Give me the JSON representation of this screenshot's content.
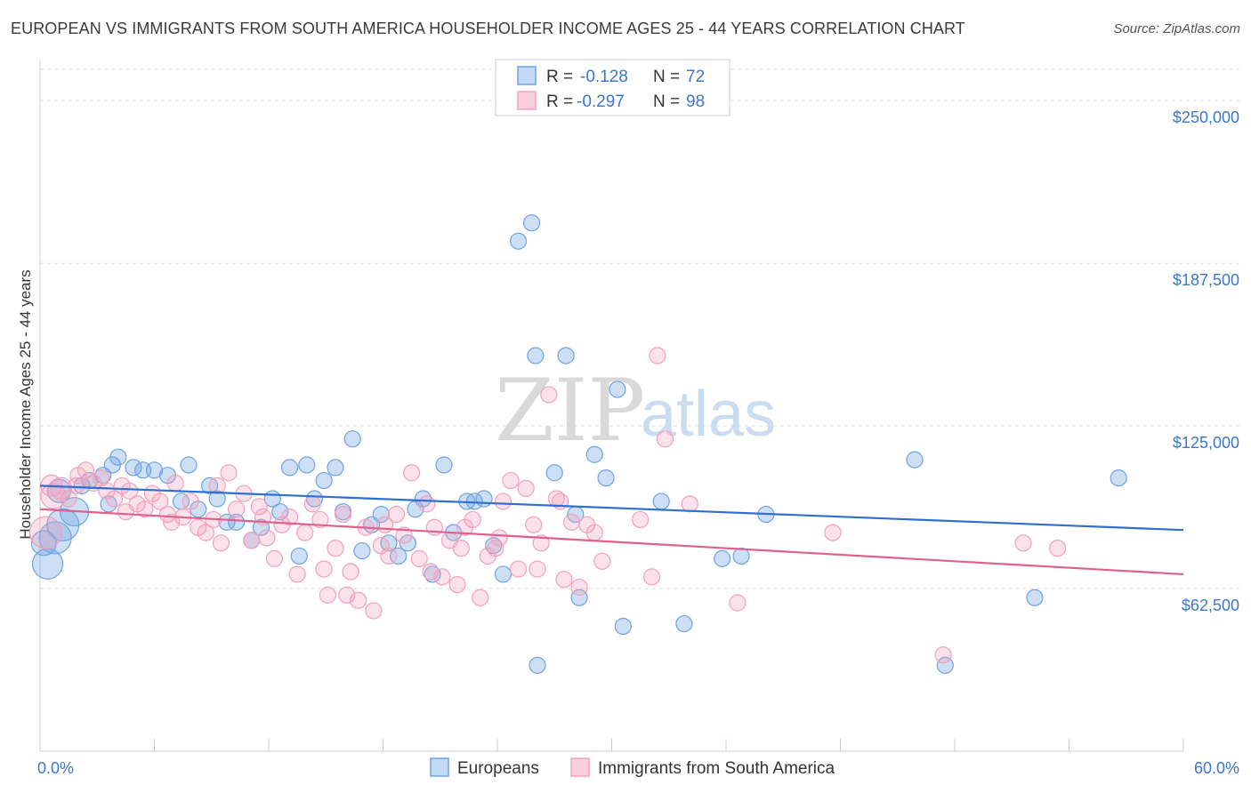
{
  "title": "EUROPEAN VS IMMIGRANTS FROM SOUTH AMERICA HOUSEHOLDER INCOME AGES 25 - 44 YEARS CORRELATION CHART",
  "source": "Source: ZipAtlas.com",
  "watermark": {
    "zip": "ZIP",
    "atlas": "atlas"
  },
  "legend": {
    "r_label": "R =",
    "n_label": "N =",
    "rows": [
      {
        "r": "-0.128",
        "n": "72"
      },
      {
        "r": "-0.297",
        "n": "98"
      }
    ]
  },
  "chart_data": {
    "type": "scatter",
    "title": "EUROPEAN VS IMMIGRANTS FROM SOUTH AMERICA HOUSEHOLDER INCOME AGES 25 - 44 YEARS CORRELATION CHART",
    "xlabel": "",
    "ylabel": "Householder Income Ages 25 - 44 years",
    "xlim": [
      0,
      60
    ],
    "ylim": [
      0,
      262000
    ],
    "x_tick_labels": [
      "0.0%",
      "60.0%"
    ],
    "y_ticks": [
      62500,
      125000,
      187500,
      250000
    ],
    "y_tick_labels": [
      "$62,500",
      "$125,000",
      "$187,500",
      "$250,000"
    ],
    "grid": true,
    "legend_placement": "top-center",
    "colors": {
      "europeans": "#6fa3e0",
      "immigrants": "#f2a0bb",
      "europeans_line": "#2f6fcf",
      "immigrants_line": "#e0608c"
    },
    "series": [
      {
        "name": "Europeans",
        "r": -0.128,
        "n": 72,
        "trend": {
          "x": [
            0,
            60
          ],
          "y": [
            102000,
            85000
          ]
        },
        "points": [
          [
            0.4,
            72000
          ],
          [
            0.8,
            82000
          ],
          [
            1.2,
            87000
          ],
          [
            1.8,
            92000
          ],
          [
            2.2,
            102000
          ],
          [
            2.6,
            104000
          ],
          [
            3.3,
            106000
          ],
          [
            3.8,
            110000
          ],
          [
            4.1,
            113000
          ],
          [
            4.9,
            109000
          ],
          [
            5.4,
            108000
          ],
          [
            6.0,
            108000
          ],
          [
            6.7,
            106000
          ],
          [
            7.4,
            96000
          ],
          [
            7.8,
            110000
          ],
          [
            8.3,
            93000
          ],
          [
            8.9,
            102000
          ],
          [
            9.3,
            97000
          ],
          [
            9.8,
            88000
          ],
          [
            10.3,
            88000
          ],
          [
            11.1,
            81000
          ],
          [
            11.6,
            86000
          ],
          [
            12.2,
            97000
          ],
          [
            12.6,
            92000
          ],
          [
            13.1,
            109000
          ],
          [
            13.6,
            75000
          ],
          [
            14.0,
            110000
          ],
          [
            14.4,
            97000
          ],
          [
            14.9,
            104000
          ],
          [
            15.5,
            109000
          ],
          [
            15.9,
            92000
          ],
          [
            16.4,
            120000
          ],
          [
            16.9,
            77000
          ],
          [
            17.4,
            87000
          ],
          [
            17.9,
            91000
          ],
          [
            18.3,
            80000
          ],
          [
            18.8,
            75000
          ],
          [
            19.3,
            80000
          ],
          [
            19.7,
            93000
          ],
          [
            20.1,
            97000
          ],
          [
            20.6,
            68000
          ],
          [
            21.2,
            110000
          ],
          [
            21.7,
            84000
          ],
          [
            22.4,
            96000
          ],
          [
            22.8,
            96000
          ],
          [
            23.3,
            97000
          ],
          [
            23.8,
            79000
          ],
          [
            24.3,
            68000
          ],
          [
            25.1,
            196000
          ],
          [
            25.8,
            203000
          ],
          [
            26.0,
            152000
          ],
          [
            26.1,
            33000
          ],
          [
            27.0,
            107000
          ],
          [
            27.6,
            152000
          ],
          [
            28.1,
            91000
          ],
          [
            28.3,
            59000
          ],
          [
            29.1,
            114000
          ],
          [
            29.7,
            105000
          ],
          [
            30.3,
            139000
          ],
          [
            30.6,
            48000
          ],
          [
            32.6,
            96000
          ],
          [
            33.8,
            49000
          ],
          [
            35.8,
            74000
          ],
          [
            36.8,
            75000
          ],
          [
            38.1,
            91000
          ],
          [
            45.9,
            112000
          ],
          [
            47.5,
            33000
          ],
          [
            52.2,
            59000
          ],
          [
            56.6,
            105000
          ],
          [
            0.2,
            80000
          ],
          [
            1.0,
            100000
          ],
          [
            3.6,
            95000
          ]
        ],
        "sizes": "mostly small; a few large points near x=0"
      },
      {
        "name": "Immigrants from South America",
        "r": -0.297,
        "n": 98,
        "trend": {
          "x": [
            0,
            60
          ],
          "y": [
            93000,
            68000
          ]
        },
        "points": [
          [
            0.3,
            84000
          ],
          [
            0.7,
            98000
          ],
          [
            1.1,
            101000
          ],
          [
            1.5,
            97000
          ],
          [
            2.0,
            106000
          ],
          [
            2.4,
            108000
          ],
          [
            2.8,
            103000
          ],
          [
            3.2,
            105000
          ],
          [
            3.5,
            100000
          ],
          [
            3.9,
            97000
          ],
          [
            4.3,
            102000
          ],
          [
            4.7,
            100000
          ],
          [
            5.1,
            95000
          ],
          [
            5.5,
            93000
          ],
          [
            5.9,
            99000
          ],
          [
            6.3,
            96000
          ],
          [
            6.7,
            91000
          ],
          [
            7.1,
            103000
          ],
          [
            7.5,
            90000
          ],
          [
            7.9,
            96000
          ],
          [
            8.3,
            86000
          ],
          [
            8.7,
            84000
          ],
          [
            9.1,
            89000
          ],
          [
            9.5,
            80000
          ],
          [
            9.9,
            107000
          ],
          [
            10.3,
            93000
          ],
          [
            10.7,
            99000
          ],
          [
            11.1,
            81000
          ],
          [
            11.5,
            94000
          ],
          [
            11.9,
            82000
          ],
          [
            12.3,
            74000
          ],
          [
            12.7,
            87000
          ],
          [
            13.1,
            90000
          ],
          [
            13.5,
            68000
          ],
          [
            13.9,
            84000
          ],
          [
            14.3,
            95000
          ],
          [
            14.7,
            89000
          ],
          [
            15.1,
            60000
          ],
          [
            15.5,
            78000
          ],
          [
            15.9,
            91000
          ],
          [
            16.3,
            69000
          ],
          [
            16.7,
            58000
          ],
          [
            17.1,
            86000
          ],
          [
            17.5,
            54000
          ],
          [
            17.9,
            79000
          ],
          [
            18.3,
            75000
          ],
          [
            18.7,
            91000
          ],
          [
            19.1,
            83000
          ],
          [
            19.5,
            107000
          ],
          [
            19.9,
            74000
          ],
          [
            20.3,
            95000
          ],
          [
            20.7,
            86000
          ],
          [
            21.1,
            67000
          ],
          [
            21.5,
            81000
          ],
          [
            21.9,
            64000
          ],
          [
            22.3,
            86000
          ],
          [
            22.7,
            89000
          ],
          [
            23.1,
            59000
          ],
          [
            23.5,
            75000
          ],
          [
            23.9,
            78000
          ],
          [
            24.3,
            96000
          ],
          [
            24.7,
            104000
          ],
          [
            25.1,
            70000
          ],
          [
            25.5,
            101000
          ],
          [
            25.9,
            87000
          ],
          [
            26.3,
            80000
          ],
          [
            26.7,
            137000
          ],
          [
            27.1,
            97000
          ],
          [
            27.5,
            66000
          ],
          [
            27.9,
            88000
          ],
          [
            28.3,
            63000
          ],
          [
            28.7,
            87000
          ],
          [
            29.1,
            84000
          ],
          [
            32.1,
            67000
          ],
          [
            32.4,
            152000
          ],
          [
            32.8,
            120000
          ],
          [
            34.1,
            95000
          ],
          [
            36.6,
            57000
          ],
          [
            41.6,
            84000
          ],
          [
            47.4,
            37000
          ],
          [
            51.6,
            80000
          ],
          [
            53.4,
            78000
          ],
          [
            1.9,
            102000
          ],
          [
            4.5,
            92000
          ],
          [
            6.9,
            88000
          ],
          [
            9.3,
            102000
          ],
          [
            11.7,
            90000
          ],
          [
            14.9,
            70000
          ],
          [
            16.1,
            60000
          ],
          [
            18.1,
            87000
          ],
          [
            20.5,
            69000
          ],
          [
            22.1,
            78000
          ],
          [
            24.1,
            82000
          ],
          [
            26.1,
            70000
          ],
          [
            27.3,
            96000
          ],
          [
            29.5,
            73000
          ],
          [
            31.5,
            89000
          ],
          [
            0.6,
            102000
          ]
        ],
        "sizes": "mostly small; a few larger points near x=0"
      }
    ]
  },
  "bottom_legend": [
    {
      "label": "Europeans"
    },
    {
      "label": "Immigrants from South America"
    }
  ]
}
